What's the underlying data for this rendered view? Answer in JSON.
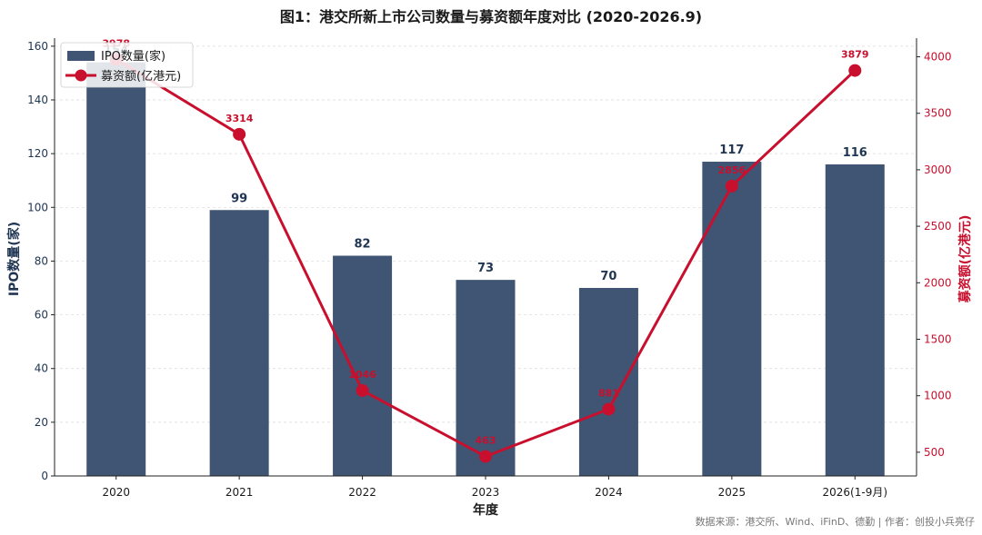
{
  "chart_data": {
    "type": "bar+line",
    "title": "图1：港交所新上市公司数量与募资额年度对比 (2020-2026.9)",
    "xlabel": "年度",
    "ylabel_left": "IPO数量(家)",
    "ylabel_right": "募资额(亿港元)",
    "categories": [
      "2020",
      "2021",
      "2022",
      "2023",
      "2024",
      "2025",
      "2026(1-9月)"
    ],
    "series": [
      {
        "name": "IPO数量(家)",
        "type": "bar",
        "axis": "left",
        "color": "#3f5573",
        "values": [
          154,
          99,
          82,
          73,
          70,
          117,
          116
        ],
        "labels": [
          "154",
          "99",
          "82",
          "73",
          "70",
          "117",
          "116"
        ]
      },
      {
        "name": "募资额(亿港元)",
        "type": "line",
        "axis": "right",
        "color": "#c8102e",
        "values": [
          3978,
          3314,
          1046,
          463,
          881,
          2856,
          3879
        ],
        "labels": [
          "3978",
          "3314",
          "1046",
          "463",
          "881",
          "2856",
          "3879"
        ]
      }
    ],
    "ylim_left": [
      0,
      163
    ],
    "yticks_left": [
      0,
      20,
      40,
      60,
      80,
      100,
      120,
      140,
      160
    ],
    "ylim_right": [
      290,
      4165
    ],
    "yticks_right": [
      500,
      1000,
      1500,
      2000,
      2500,
      3000,
      3500,
      4000
    ],
    "grid": "horizontal dashed",
    "legend_position": "top-left",
    "colors": {
      "left_axis": "#1f3552",
      "right_axis": "#c8102e"
    }
  },
  "source_note": "数据来源：港交所、Wind、iFinD、德勤 | 作者：创投小兵亮仔"
}
